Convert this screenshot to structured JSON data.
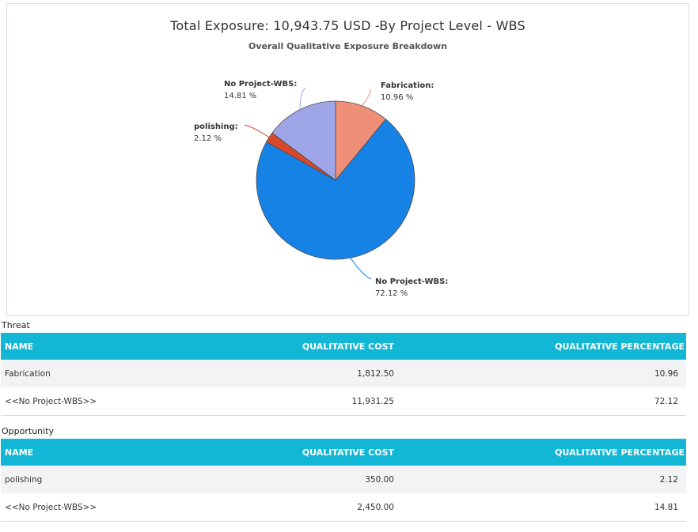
{
  "chart_data": {
    "type": "pie",
    "title": "Total Exposure: 10,943.75 USD -By Project Level - WBS",
    "subtitle": "Overall Qualitative Exposure Breakdown",
    "slices": [
      {
        "name": "Fabrication",
        "value": 10.96,
        "label_pct": "10.96 %",
        "color": "#ef8f77"
      },
      {
        "name": "No Project-WBS",
        "value": 72.12,
        "label_pct": "72.12 %",
        "color": "#1682e6"
      },
      {
        "name": "polishing",
        "value": 2.12,
        "label_pct": "2.12 %",
        "color": "#d9472b"
      },
      {
        "name": "No Project-WBS",
        "value": 14.81,
        "label_pct": "14.81 %",
        "color": "#9fa6e8"
      }
    ]
  },
  "tables": {
    "threat": {
      "label": "Threat",
      "columns": [
        "NAME",
        "QUALITATIVE COST",
        "QUALITATIVE PERCENTAGE"
      ],
      "rows": [
        {
          "name": "Fabrication",
          "cost": "1,812.50",
          "pct": "10.96"
        },
        {
          "name": "<<No Project-WBS>>",
          "cost": "11,931.25",
          "pct": "72.12"
        }
      ]
    },
    "opportunity": {
      "label": "Opportunity",
      "columns": [
        "NAME",
        "QUALITATIVE COST",
        "QUALITATIVE PERCENTAGE"
      ],
      "rows": [
        {
          "name": "polishing",
          "cost": "350.00",
          "pct": "2.12"
        },
        {
          "name": "<<No Project-WBS>>",
          "cost": "2,450.00",
          "pct": "14.81"
        }
      ]
    }
  }
}
